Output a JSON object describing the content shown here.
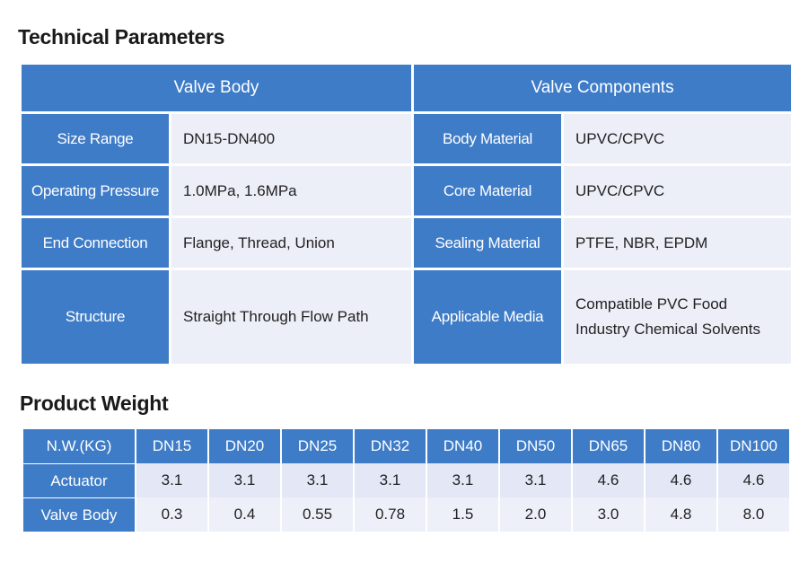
{
  "tech_params": {
    "heading": "Technical Parameters",
    "header_left": "Valve Body",
    "header_right": "Valve Components",
    "rows": [
      {
        "label_left": "Size Range",
        "value_left": "DN15-DN400",
        "label_right": "Body Material",
        "value_right": "UPVC/CPVC"
      },
      {
        "label_left": "Operating Pressure",
        "value_left": "1.0MPa, 1.6MPa",
        "label_right": "Core Material",
        "value_right": "UPVC/CPVC"
      },
      {
        "label_left": "End Connection",
        "value_left": "Flange, Thread, Union",
        "label_right": "Sealing Material",
        "value_right": "PTFE, NBR, EPDM"
      },
      {
        "label_left": "Structure",
        "value_left": "Straight Through Flow Path",
        "label_right": "Applicable Media",
        "value_right_lines": [
          "Compatible PVC Food",
          "Industry Chemical Solvents"
        ]
      }
    ]
  },
  "product_weight": {
    "heading": "Product Weight",
    "header_label": "N.W.(KG)",
    "sizes": [
      "DN15",
      "DN20",
      "DN25",
      "DN32",
      "DN40",
      "DN50",
      "DN65",
      "DN80",
      "DN100"
    ],
    "rows": [
      {
        "label": "Actuator",
        "values": [
          "3.1",
          "3.1",
          "3.1",
          "3.1",
          "3.1",
          "3.1",
          "4.6",
          "4.6",
          "4.6"
        ]
      },
      {
        "label": "Valve Body",
        "values": [
          "0.3",
          "0.4",
          "0.55",
          "0.78",
          "1.5",
          "2.0",
          "3.0",
          "4.8",
          "8.0"
        ]
      }
    ]
  },
  "colors": {
    "header_blue": "#3f7cc7",
    "cell_light": "#eceef8"
  }
}
